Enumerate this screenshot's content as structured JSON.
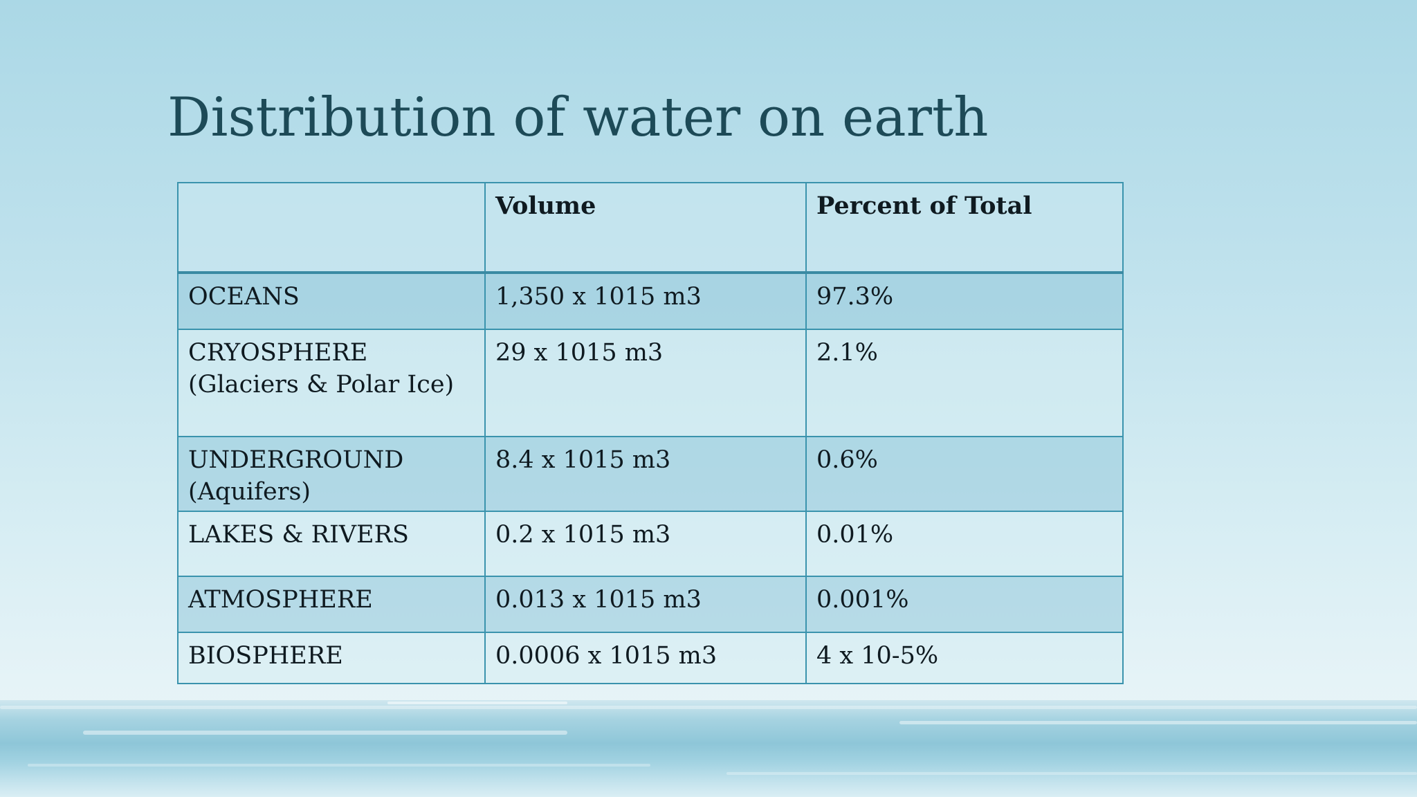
{
  "slide": {
    "title": "Distribution of water on earth"
  },
  "table": {
    "headers": [
      "",
      "Volume",
      "Percent of Total"
    ],
    "rows": [
      {
        "category": "OCEANS",
        "volume": "1,350 x 1015 m3",
        "percent": "97.3%"
      },
      {
        "category": "CRYOSPHERE\n(Glaciers & Polar Ice)",
        "volume": "29 x 1015 m3",
        "percent": "2.1%"
      },
      {
        "category": "UNDERGROUND\n(Aquifers)",
        "volume": "8.4 x 1015 m3",
        "percent": "0.6%"
      },
      {
        "category": "LAKES & RIVERS",
        "volume": "0.2 x 1015 m3",
        "percent": "0.01%"
      },
      {
        "category": "ATMOSPHERE",
        "volume": "0.013 x 1015 m3",
        "percent": "0.001%"
      },
      {
        "category": "BIOSPHERE",
        "volume": "0.0006 x 1015 m3",
        "percent": "4 x 10-5%"
      }
    ]
  },
  "colors": {
    "title": "#1d4a57",
    "table_border": "#3a93ad",
    "band_row": "#93c9da",
    "text": "#0f1a20"
  }
}
